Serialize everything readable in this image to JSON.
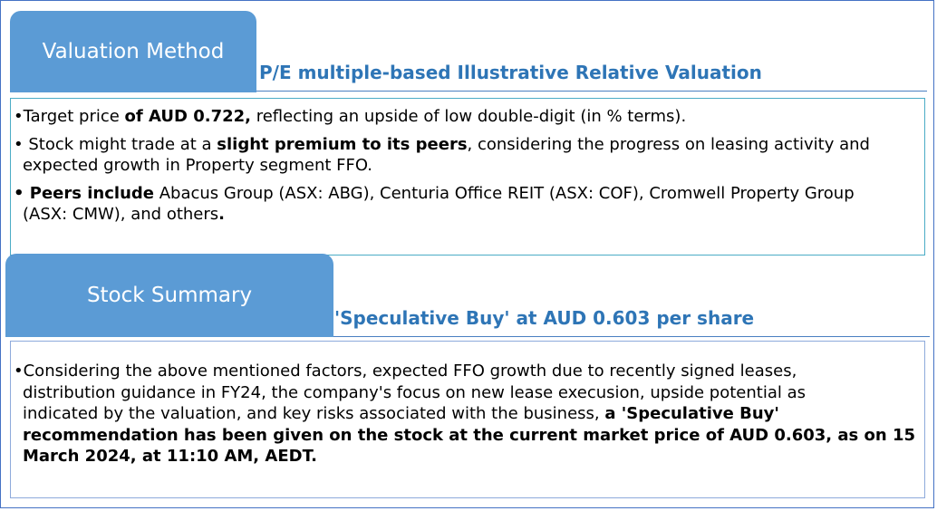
{
  "valuation": {
    "tab_label": "Valuation Method",
    "subtitle": "P/E multiple-based Illustrative Relative Valuation",
    "bullets": [
      {
        "first_line": [
          {
            "text": "•Target price ",
            "bold": false
          },
          {
            "text": "of AUD 0.722,",
            "bold": true
          },
          {
            "text": " reflecting an upside of low double-digit (in % terms).",
            "bold": false
          }
        ],
        "second_line": []
      },
      {
        "first_line": [
          {
            "text": "• Stock might trade at a ",
            "bold": false
          },
          {
            "text": "slight premium to its peers",
            "bold": true
          },
          {
            "text": ", considering the progress on leasing activity and",
            "bold": false
          }
        ],
        "second_line": [
          {
            "text": "expected growth in Property segment FFO.",
            "bold": false
          }
        ]
      },
      {
        "first_line": [
          {
            "text": "• ",
            "bold": true
          },
          {
            "text": "Peers include",
            "bold": true
          },
          {
            "text": " Abacus Group (ASX: ABG), Centuria Office REIT (ASX: COF), Cromwell Property Group",
            "bold": false
          }
        ],
        "second_line": [
          {
            "text": "(ASX: CMW), and others",
            "bold": false
          },
          {
            "text": ".",
            "bold": true
          }
        ]
      }
    ]
  },
  "summary": {
    "tab_label": "Stock Summary",
    "subtitle": "'Speculative Buy' at AUD 0.603 per share",
    "lines": [
      [
        {
          "text": "•Considering the above mentioned factors, expected FFO growth due to recently signed leases,",
          "bold": false
        }
      ],
      [
        {
          "text": "distribution guidance in FY24, the company's focus on new lease execusion, upside potential as",
          "bold": false
        }
      ],
      [
        {
          "text": "indicated by the valuation, and key risks associated with the business, ",
          "bold": false
        },
        {
          "text": "a  'Speculative Buy'",
          "bold": true
        }
      ],
      [
        {
          "text": "recommendation has been given on the stock at the current market price of AUD 0.603, as on 15",
          "bold": true
        }
      ],
      [
        {
          "text": "March 2024, at 11:10 AM, AEDT.",
          "bold": true
        }
      ]
    ]
  }
}
